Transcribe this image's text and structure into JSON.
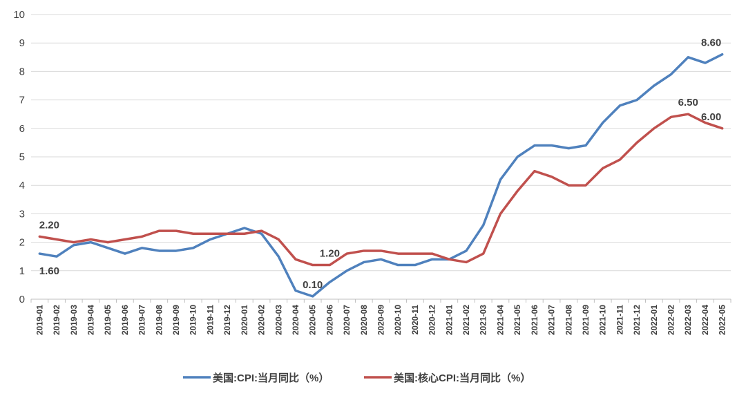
{
  "chart_data": {
    "type": "line",
    "categories": [
      "2019-01",
      "2019-02",
      "2019-03",
      "2019-04",
      "2019-05",
      "2019-06",
      "2019-07",
      "2019-08",
      "2019-09",
      "2019-10",
      "2019-11",
      "2019-12",
      "2020-01",
      "2020-02",
      "2020-03",
      "2020-04",
      "2020-05",
      "2020-06",
      "2020-07",
      "2020-08",
      "2020-09",
      "2020-10",
      "2020-11",
      "2020-12",
      "2021-01",
      "2021-02",
      "2021-03",
      "2021-04",
      "2021-05",
      "2021-06",
      "2021-07",
      "2021-08",
      "2021-09",
      "2021-10",
      "2021-11",
      "2021-12",
      "2022-01",
      "2022-02",
      "2022-03",
      "2022-04",
      "2022-05"
    ],
    "series": [
      {
        "name": "美国:CPI:当月同比（%）",
        "color": "#4F81BD",
        "values": [
          1.6,
          1.5,
          1.9,
          2.0,
          1.8,
          1.6,
          1.8,
          1.7,
          1.7,
          1.8,
          2.1,
          2.3,
          2.5,
          2.3,
          1.5,
          0.3,
          0.1,
          0.6,
          1.0,
          1.3,
          1.4,
          1.2,
          1.2,
          1.4,
          1.4,
          1.7,
          2.6,
          4.2,
          5.0,
          5.4,
          5.4,
          5.3,
          5.4,
          6.2,
          6.8,
          7.0,
          7.5,
          7.9,
          8.5,
          8.3,
          8.6
        ]
      },
      {
        "name": "美国:核心CPI:当月同比（%）",
        "color": "#C0504D",
        "values": [
          2.2,
          2.1,
          2.0,
          2.1,
          2.0,
          2.1,
          2.2,
          2.4,
          2.4,
          2.3,
          2.3,
          2.3,
          2.3,
          2.4,
          2.1,
          1.4,
          1.2,
          1.2,
          1.6,
          1.7,
          1.7,
          1.6,
          1.6,
          1.6,
          1.4,
          1.3,
          1.6,
          3.0,
          3.8,
          4.5,
          4.3,
          4.0,
          4.0,
          4.6,
          4.9,
          5.5,
          6.0,
          6.4,
          6.5,
          6.2,
          6.0
        ]
      }
    ],
    "data_labels": [
      {
        "series": 0,
        "index": 0,
        "text": "1.60",
        "placement": "below"
      },
      {
        "series": 0,
        "index": 16,
        "text": "0.10",
        "placement": "above"
      },
      {
        "series": 0,
        "index": 40,
        "text": "8.60",
        "placement": "above"
      },
      {
        "series": 1,
        "index": 0,
        "text": "2.20",
        "placement": "above"
      },
      {
        "series": 1,
        "index": 17,
        "text": "1.20",
        "placement": "above"
      },
      {
        "series": 1,
        "index": 38,
        "text": "6.50",
        "placement": "above"
      },
      {
        "series": 1,
        "index": 40,
        "text": "6.00",
        "placement": "above"
      }
    ],
    "ylim": [
      0,
      10
    ],
    "yticks": [
      0,
      1,
      2,
      3,
      4,
      5,
      6,
      7,
      8,
      9,
      10
    ],
    "grid": true,
    "legend": "bottom-center",
    "title": "",
    "xlabel": "",
    "ylabel": ""
  }
}
